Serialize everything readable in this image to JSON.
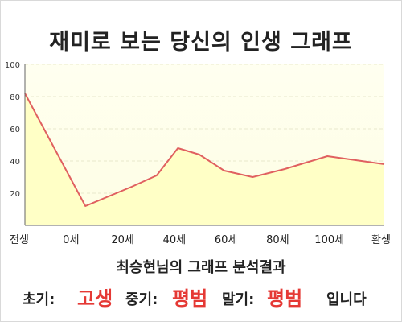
{
  "title": "재미로 보는 당신의 인생 그래프",
  "subtitle": "최승현님의 그래프 분석결과",
  "result": {
    "early_label": "초기:",
    "early_value": "고생",
    "mid_label": "중기:",
    "mid_value": "평범",
    "late_label": "말기:",
    "late_value": "평범",
    "suffix": "입니다"
  },
  "colors": {
    "line": "#e06060",
    "fill": "#ffffc6",
    "plot_bg_top": "#fffff0",
    "plot_bg_bottom": "#fefee4",
    "highlight": "#e53935"
  },
  "chart_data": {
    "type": "area",
    "x_tick_labels": [
      "전생",
      "0세",
      "20세",
      "40세",
      "60세",
      "80세",
      "100세",
      "환생"
    ],
    "x": [
      -17,
      0,
      13,
      20,
      26,
      32,
      39,
      47,
      56,
      68,
      84
    ],
    "y": [
      82,
      12,
      24,
      31,
      48,
      44,
      34,
      30,
      35,
      43,
      38
    ],
    "xlim": [
      -17,
      84
    ],
    "ylim": [
      0,
      100
    ],
    "y_ticks": [
      20,
      40,
      60,
      80,
      100
    ],
    "grid": true
  }
}
